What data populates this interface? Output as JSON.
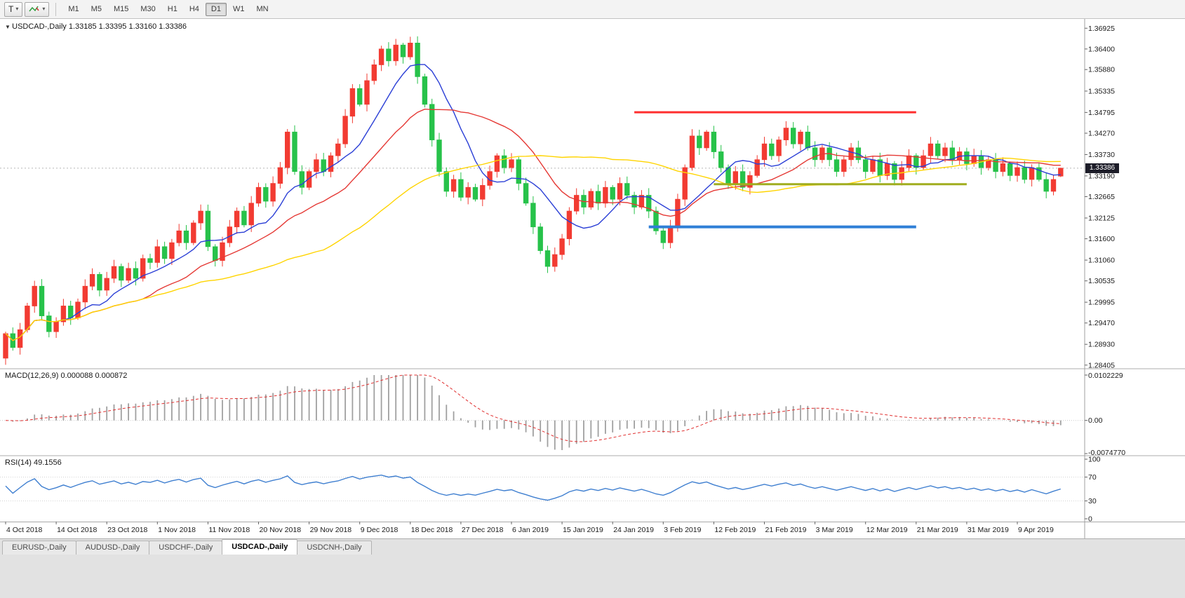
{
  "toolbar": {
    "tool_t_label": "T",
    "timeframes": [
      "M1",
      "M5",
      "M15",
      "M30",
      "H1",
      "H4",
      "D1",
      "W1",
      "MN"
    ],
    "active_timeframe": "D1"
  },
  "chart": {
    "symbol_label": "USDCAD-,Daily",
    "ohlc_text": "1.33185 1.33395 1.33160 1.33386",
    "current_price_label": "1.33386",
    "price_axis_labels": [
      "1.36925",
      "1.36400",
      "1.35880",
      "1.35335",
      "1.34795",
      "1.34270",
      "1.33730",
      "1.33190",
      "1.32665",
      "1.32125",
      "1.31600",
      "1.31060",
      "1.30535",
      "1.29995",
      "1.29470",
      "1.28930",
      "1.28405"
    ]
  },
  "macd": {
    "label": "MACD(12,26,9)",
    "value_main": "0.000088",
    "value_signal": "0.000872",
    "axis_labels": [
      "0.0102229",
      "0.00",
      "-0.0074770"
    ]
  },
  "rsi": {
    "label": "RSI(14)",
    "value": "49.1556",
    "axis_labels": [
      "100",
      "70",
      "30",
      "0"
    ],
    "levels": [
      70,
      30
    ]
  },
  "date_axis": [
    "4 Oct 2018",
    "14 Oct 2018",
    "23 Oct 2018",
    "1 Nov 2018",
    "11 Nov 2018",
    "20 Nov 2018",
    "29 Nov 2018",
    "9 Dec 2018",
    "18 Dec 2018",
    "27 Dec 2018",
    "6 Jan 2019",
    "15 Jan 2019",
    "24 Jan 2019",
    "3 Feb 2019",
    "12 Feb 2019",
    "21 Feb 2019",
    "3 Mar 2019",
    "12 Mar 2019",
    "21 Mar 2019",
    "31 Mar 2019",
    "9 Apr 2019"
  ],
  "tabs": {
    "items": [
      "EURUSD-,Daily",
      "AUDUSD-,Daily",
      "USDCHF-,Daily",
      "USDCAD-,Daily",
      "USDCNH-,Daily"
    ],
    "active_index": 3
  },
  "chart_data": {
    "type": "candlestick",
    "title": "USDCAD-,Daily",
    "symbol": "USDCAD",
    "timeframe": "Daily",
    "price_range": {
      "top": 1.3716,
      "bottom": 1.2833
    },
    "first_open": 1.2858,
    "closes": [
      1.292,
      1.2885,
      1.293,
      1.299,
      1.304,
      1.2965,
      1.2925,
      1.295,
      1.299,
      1.296,
      1.3,
      1.304,
      1.307,
      1.303,
      1.306,
      1.309,
      1.3055,
      1.3085,
      1.306,
      1.311,
      1.31,
      1.314,
      1.311,
      1.315,
      1.318,
      1.315,
      1.32,
      1.323,
      1.314,
      1.3105,
      1.315,
      1.319,
      1.323,
      1.3195,
      1.325,
      1.329,
      1.3255,
      1.33,
      1.334,
      1.343,
      1.333,
      1.329,
      1.333,
      1.336,
      1.333,
      1.337,
      1.34,
      1.347,
      1.354,
      1.35,
      1.356,
      1.36,
      1.364,
      1.361,
      1.365,
      1.362,
      1.3655,
      1.357,
      1.35,
      1.341,
      1.333,
      1.328,
      1.331,
      1.3265,
      1.329,
      1.326,
      1.3295,
      1.333,
      1.337,
      1.334,
      1.336,
      1.33,
      1.325,
      1.319,
      1.313,
      1.309,
      1.312,
      1.316,
      1.323,
      1.327,
      1.324,
      1.328,
      1.325,
      1.329,
      1.326,
      1.33,
      1.327,
      1.324,
      1.327,
      1.323,
      1.318,
      1.315,
      1.319,
      1.326,
      1.334,
      1.342,
      1.339,
      1.343,
      1.338,
      1.334,
      1.33,
      1.333,
      1.329,
      1.332,
      1.336,
      1.34,
      1.337,
      1.341,
      1.344,
      1.34,
      1.343,
      1.339,
      1.336,
      1.339,
      1.336,
      1.333,
      1.336,
      1.339,
      1.336,
      1.333,
      1.336,
      1.332,
      1.335,
      1.331,
      1.334,
      1.337,
      1.334,
      1.337,
      1.34,
      1.337,
      1.339,
      1.336,
      1.338,
      1.335,
      1.337,
      1.334,
      1.336,
      1.333,
      1.335,
      1.332,
      1.334,
      1.331,
      1.334,
      1.331,
      1.328,
      1.331,
      1.33386
    ],
    "last_candle": {
      "open": 1.33185,
      "high": 1.33395,
      "low": 1.3316,
      "close": 1.33386
    },
    "bull_color": "#f23b32",
    "bear_color": "#27c24a",
    "moving_averages": [
      {
        "period": 9,
        "color": "#2b3fd6"
      },
      {
        "period": 20,
        "color": "#e53935"
      },
      {
        "period": 45,
        "color": "#ffd400"
      }
    ],
    "horizontal_lines": [
      {
        "price": 1.348,
        "from_bar": 87,
        "to_bar": 126,
        "color": "#ff2e2e",
        "width": 3
      },
      {
        "price": 1.3298,
        "from_bar": 98,
        "to_bar": 133,
        "color": "#a0ad1e",
        "width": 3
      },
      {
        "price": 1.319,
        "from_bar": 89,
        "to_bar": 126,
        "color": "#2f7fd6",
        "width": 4
      }
    ],
    "current_price": 1.33386,
    "macd_scale": {
      "max": 0.0102229,
      "min": -0.007477
    },
    "macd_colors": {
      "histogram": "#a0a0a0",
      "signal": "#e03030"
    },
    "rsi_color": "#3f7fd0"
  }
}
